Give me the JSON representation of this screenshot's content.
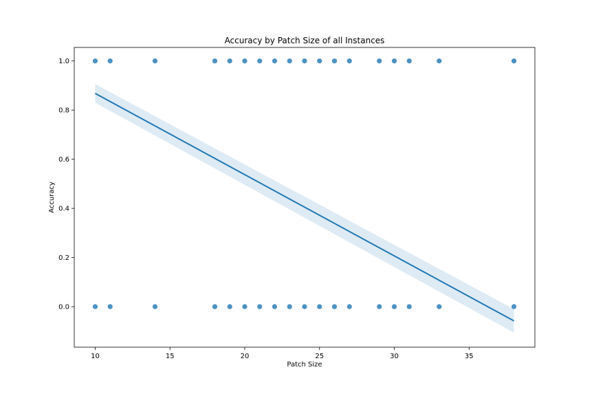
{
  "chart_data": {
    "type": "scatter",
    "title": "Accuracy by Patch Size of all Instances",
    "xlabel": "Patch Size",
    "ylabel": "Accuracy",
    "xlim": [
      8.6,
      39.4
    ],
    "ylim": [
      -0.165,
      1.055
    ],
    "xticks": [
      10,
      15,
      20,
      25,
      30,
      35
    ],
    "xtick_labels": [
      "10",
      "15",
      "20",
      "25",
      "30",
      "35"
    ],
    "yticks": [
      0.0,
      0.2,
      0.4,
      0.6,
      0.8,
      1.0
    ],
    "ytick_labels": [
      "0.0",
      "0.2",
      "0.4",
      "0.6",
      "0.8",
      "1.0"
    ],
    "grid": false,
    "series": [
      {
        "points": [
          [
            10,
            1
          ],
          [
            11,
            1
          ],
          [
            14,
            1
          ],
          [
            18,
            1
          ],
          [
            19,
            1
          ],
          [
            20,
            1
          ],
          [
            21,
            1
          ],
          [
            22,
            1
          ],
          [
            23,
            1
          ],
          [
            24,
            1
          ],
          [
            25,
            1
          ],
          [
            26,
            1
          ],
          [
            27,
            1
          ],
          [
            29,
            1
          ],
          [
            30,
            1
          ],
          [
            31,
            1
          ],
          [
            33,
            1
          ],
          [
            38,
            1
          ],
          [
            10,
            0
          ],
          [
            11,
            0
          ],
          [
            14,
            0
          ],
          [
            18,
            0
          ],
          [
            19,
            0
          ],
          [
            20,
            0
          ],
          [
            21,
            0
          ],
          [
            22,
            0
          ],
          [
            23,
            0
          ],
          [
            24,
            0
          ],
          [
            25,
            0
          ],
          [
            26,
            0
          ],
          [
            27,
            0
          ],
          [
            29,
            0
          ],
          [
            30,
            0
          ],
          [
            31,
            0
          ],
          [
            33,
            0
          ],
          [
            38,
            0
          ]
        ]
      }
    ],
    "regression": {
      "x": [
        10,
        38
      ],
      "y": [
        0.868,
        -0.058
      ],
      "ci_upper": [
        0.906,
        -0.01
      ],
      "ci_lower": [
        0.83,
        -0.106
      ]
    },
    "colors": {
      "points": "#1f77b4",
      "line": "#1f77b4",
      "ci_band": "#1f77b4"
    }
  }
}
